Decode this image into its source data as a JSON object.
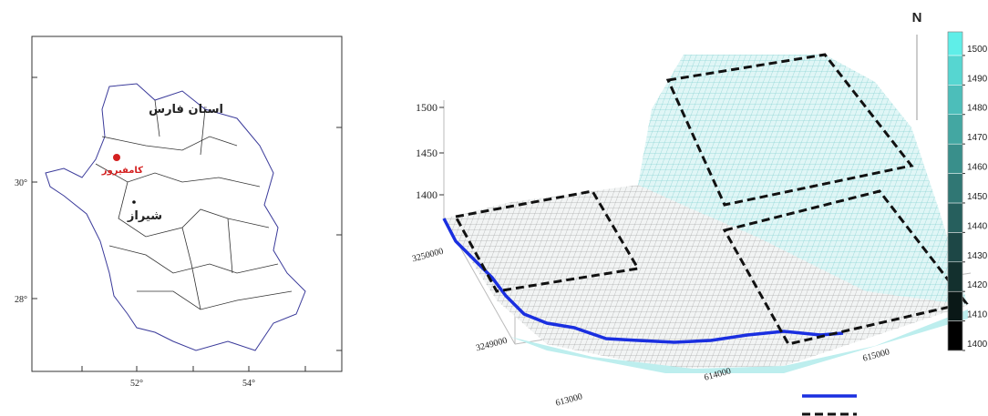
{
  "map": {
    "labels": {
      "province": "استان فارس",
      "kamfiruz": "کامفیروز",
      "shiraz": "شیراز"
    },
    "y_labels": [
      "30°",
      "28°"
    ],
    "x_labels": [
      "52°",
      "54°"
    ]
  },
  "surface": {
    "z_labels": [
      "1500",
      "1450",
      "1400"
    ],
    "y_labels": [
      "3250000",
      "3249000"
    ],
    "x_labels": [
      "613000",
      "614000",
      "615000"
    ],
    "north": "N"
  },
  "colorbar": {
    "lim": [
      1400,
      1508
    ],
    "ticks": [
      1400,
      1410,
      1420,
      1430,
      1440,
      1450,
      1460,
      1470,
      1480,
      1490,
      1500
    ]
  }
}
